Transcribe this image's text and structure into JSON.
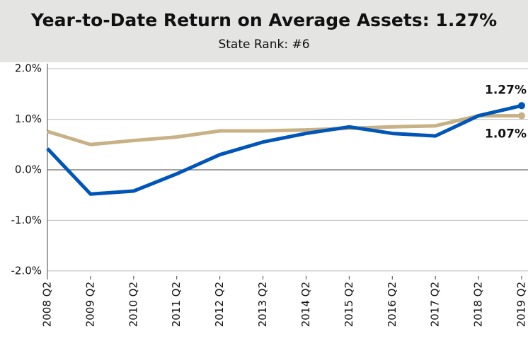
{
  "chart_data": {
    "type": "line",
    "title": "Year-to-Date Return on Average Assets: 1.27%",
    "subtitle": "State Rank: #6",
    "categories": [
      "2008 Q2",
      "2009 Q2",
      "2010 Q2",
      "2011 Q2",
      "2012 Q2",
      "2013 Q2",
      "2014 Q2",
      "2015 Q2",
      "2016 Q2",
      "2017 Q2",
      "2018 Q2",
      "2019 Q2"
    ],
    "series": [
      {
        "color": "#c8b184",
        "values": [
          0.76,
          0.5,
          0.58,
          0.65,
          0.77,
          0.77,
          0.79,
          0.82,
          0.85,
          0.87,
          1.07,
          1.07
        ],
        "value_labels": [
          null,
          null,
          null,
          null,
          null,
          null,
          null,
          null,
          null,
          null,
          null,
          "1.07%"
        ]
      },
      {
        "color": "#0055b8",
        "values": [
          0.42,
          -0.48,
          -0.42,
          -0.08,
          0.3,
          0.55,
          0.72,
          0.85,
          0.72,
          0.67,
          1.07,
          1.27
        ],
        "value_labels": [
          null,
          null,
          null,
          null,
          null,
          null,
          null,
          null,
          null,
          null,
          null,
          "1.27%"
        ]
      }
    ],
    "ylim": [
      -2.1,
      2.1
    ],
    "yticks": [
      {
        "value": -2,
        "label": "-2.0%"
      },
      {
        "value": -1,
        "label": "-1.0%"
      },
      {
        "value": 0,
        "label": "0.0%"
      },
      {
        "value": 1,
        "label": "1.0%"
      },
      {
        "value": 2,
        "label": "2.0%"
      }
    ],
    "grid": true
  }
}
